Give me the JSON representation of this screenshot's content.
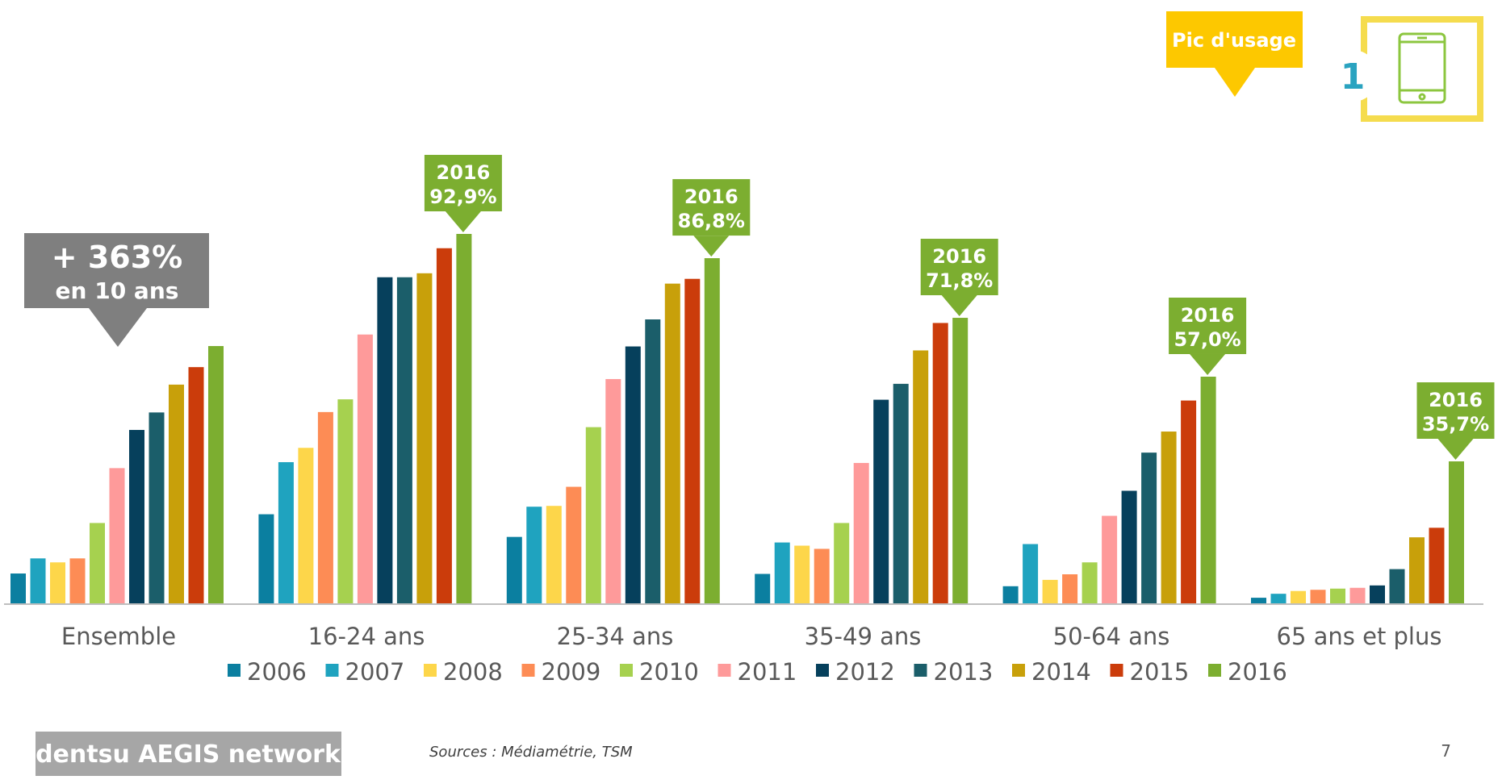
{
  "chart_data": {
    "type": "bar",
    "title": "",
    "xlabel": "",
    "ylabel": "",
    "ylim": [
      0,
      100
    ],
    "grid": false,
    "legend_placement": "bottom",
    "categories": [
      "Ensemble",
      "16-24 ans",
      "25-34 ans",
      "35-49 ans",
      "50-64 ans",
      "65 ans et plus"
    ],
    "series": [
      {
        "name": "2006",
        "color": "#0b7fa0",
        "values": [
          7.5,
          22.4,
          16.7,
          7.4,
          4.3,
          1.4
        ]
      },
      {
        "name": "2007",
        "color": "#1fa3bf",
        "values": [
          11.3,
          35.5,
          24.3,
          15.3,
          14.9,
          2.4
        ]
      },
      {
        "name": "2008",
        "color": "#fdd64a",
        "values": [
          10.3,
          39.1,
          24.5,
          14.5,
          5.9,
          3.1
        ]
      },
      {
        "name": "2009",
        "color": "#fd8c55",
        "values": [
          11.3,
          48.1,
          29.3,
          13.7,
          7.3,
          3.4
        ]
      },
      {
        "name": "2010",
        "color": "#a6d14f",
        "values": [
          20.2,
          51.3,
          44.3,
          20.2,
          10.3,
          3.7
        ]
      },
      {
        "name": "2011",
        "color": "#fe9a9a",
        "values": [
          34.0,
          67.6,
          56.4,
          35.3,
          22.0,
          3.9
        ]
      },
      {
        "name": "2012",
        "color": "#06405c",
        "values": [
          43.6,
          82.0,
          64.6,
          51.2,
          28.3,
          4.5
        ]
      },
      {
        "name": "2013",
        "color": "#1b5e6a",
        "values": [
          48.0,
          82.0,
          71.4,
          55.2,
          37.9,
          8.6
        ]
      },
      {
        "name": "2014",
        "color": "#c8a00a",
        "values": [
          55.0,
          83.0,
          80.4,
          63.6,
          43.2,
          16.6
        ]
      },
      {
        "name": "2015",
        "color": "#cb3c0b",
        "values": [
          59.4,
          89.3,
          81.6,
          70.5,
          51.0,
          19.0
        ]
      },
      {
        "name": "2016",
        "color": "#7cae30",
        "values": [
          64.7,
          92.9,
          86.8,
          71.8,
          57.0,
          35.7
        ]
      }
    ],
    "callouts": [
      {
        "category": "16-24 ans",
        "year": "2016",
        "value": "92,9%"
      },
      {
        "category": "25-34 ans",
        "year": "2016",
        "value": "86,8%"
      },
      {
        "category": "35-49 ans",
        "year": "2016",
        "value": "71,8%"
      },
      {
        "category": "50-64 ans",
        "year": "2016",
        "value": "57,0%"
      },
      {
        "category": "65 ans et plus",
        "year": "2016",
        "value": "35,7%"
      }
    ],
    "growth_callout": {
      "headline": "+ 363%",
      "subline": "en 10 ans"
    }
  },
  "peak_banner": {
    "label": "Pic d'usage"
  },
  "device_badge": {
    "number": "1",
    "icon": "tablet-icon"
  },
  "footer": {
    "logo_text": "dentsu AEGIS network",
    "sources": "Sources : Médiamétrie, TSM",
    "page_number": "7"
  },
  "colors": {
    "callout_green": "#7cae30",
    "growth_grey": "#7f7f7f",
    "banner_yellow": "#fdc800",
    "badge_teal": "#2aa3c0",
    "axis_text": "#595959"
  }
}
